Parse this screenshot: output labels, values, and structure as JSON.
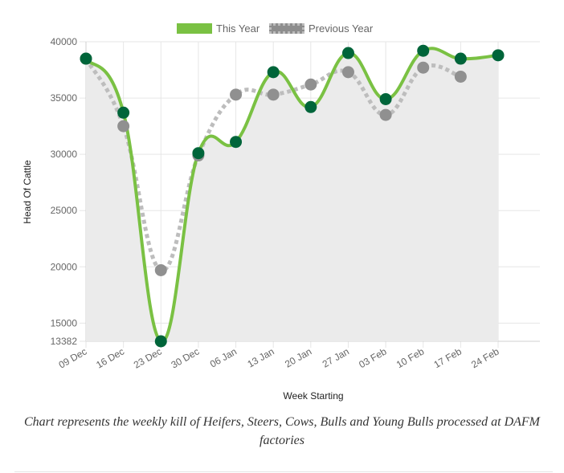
{
  "chart_data": {
    "type": "line",
    "categories": [
      "09 Dec",
      "16 Dec",
      "23 Dec",
      "30 Dec",
      "06 Jan",
      "13 Jan",
      "20 Jan",
      "27 Jan",
      "03 Feb",
      "10 Feb",
      "17 Feb",
      "24 Feb"
    ],
    "series": [
      {
        "name": "This Year",
        "values": [
          38500,
          33700,
          13382,
          30100,
          31100,
          37300,
          34200,
          39000,
          34900,
          39200,
          38500,
          38800
        ],
        "color": "#7ac143",
        "point_color": "#00653a",
        "fill": "#ebebeb"
      },
      {
        "name": "Previous Year",
        "values": [
          38500,
          32500,
          19700,
          29900,
          35300,
          35300,
          36200,
          37300,
          33500,
          37700,
          36900,
          null
        ],
        "color": "#bdbdbd",
        "point_color": "#909090",
        "dashed": true
      }
    ],
    "ylim": [
      13382,
      40000
    ],
    "yticks": [
      "40000",
      "35000",
      "30000",
      "25000",
      "20000",
      "15000",
      "13382"
    ],
    "xlabel": "Week Starting",
    "ylabel": "Head Of Cattle",
    "legend": "top-center",
    "grid": true
  },
  "caption": "Chart represents the weekly kill of Heifers, Steers, Cows, Bulls and Young Bulls processed at DAFM factories"
}
